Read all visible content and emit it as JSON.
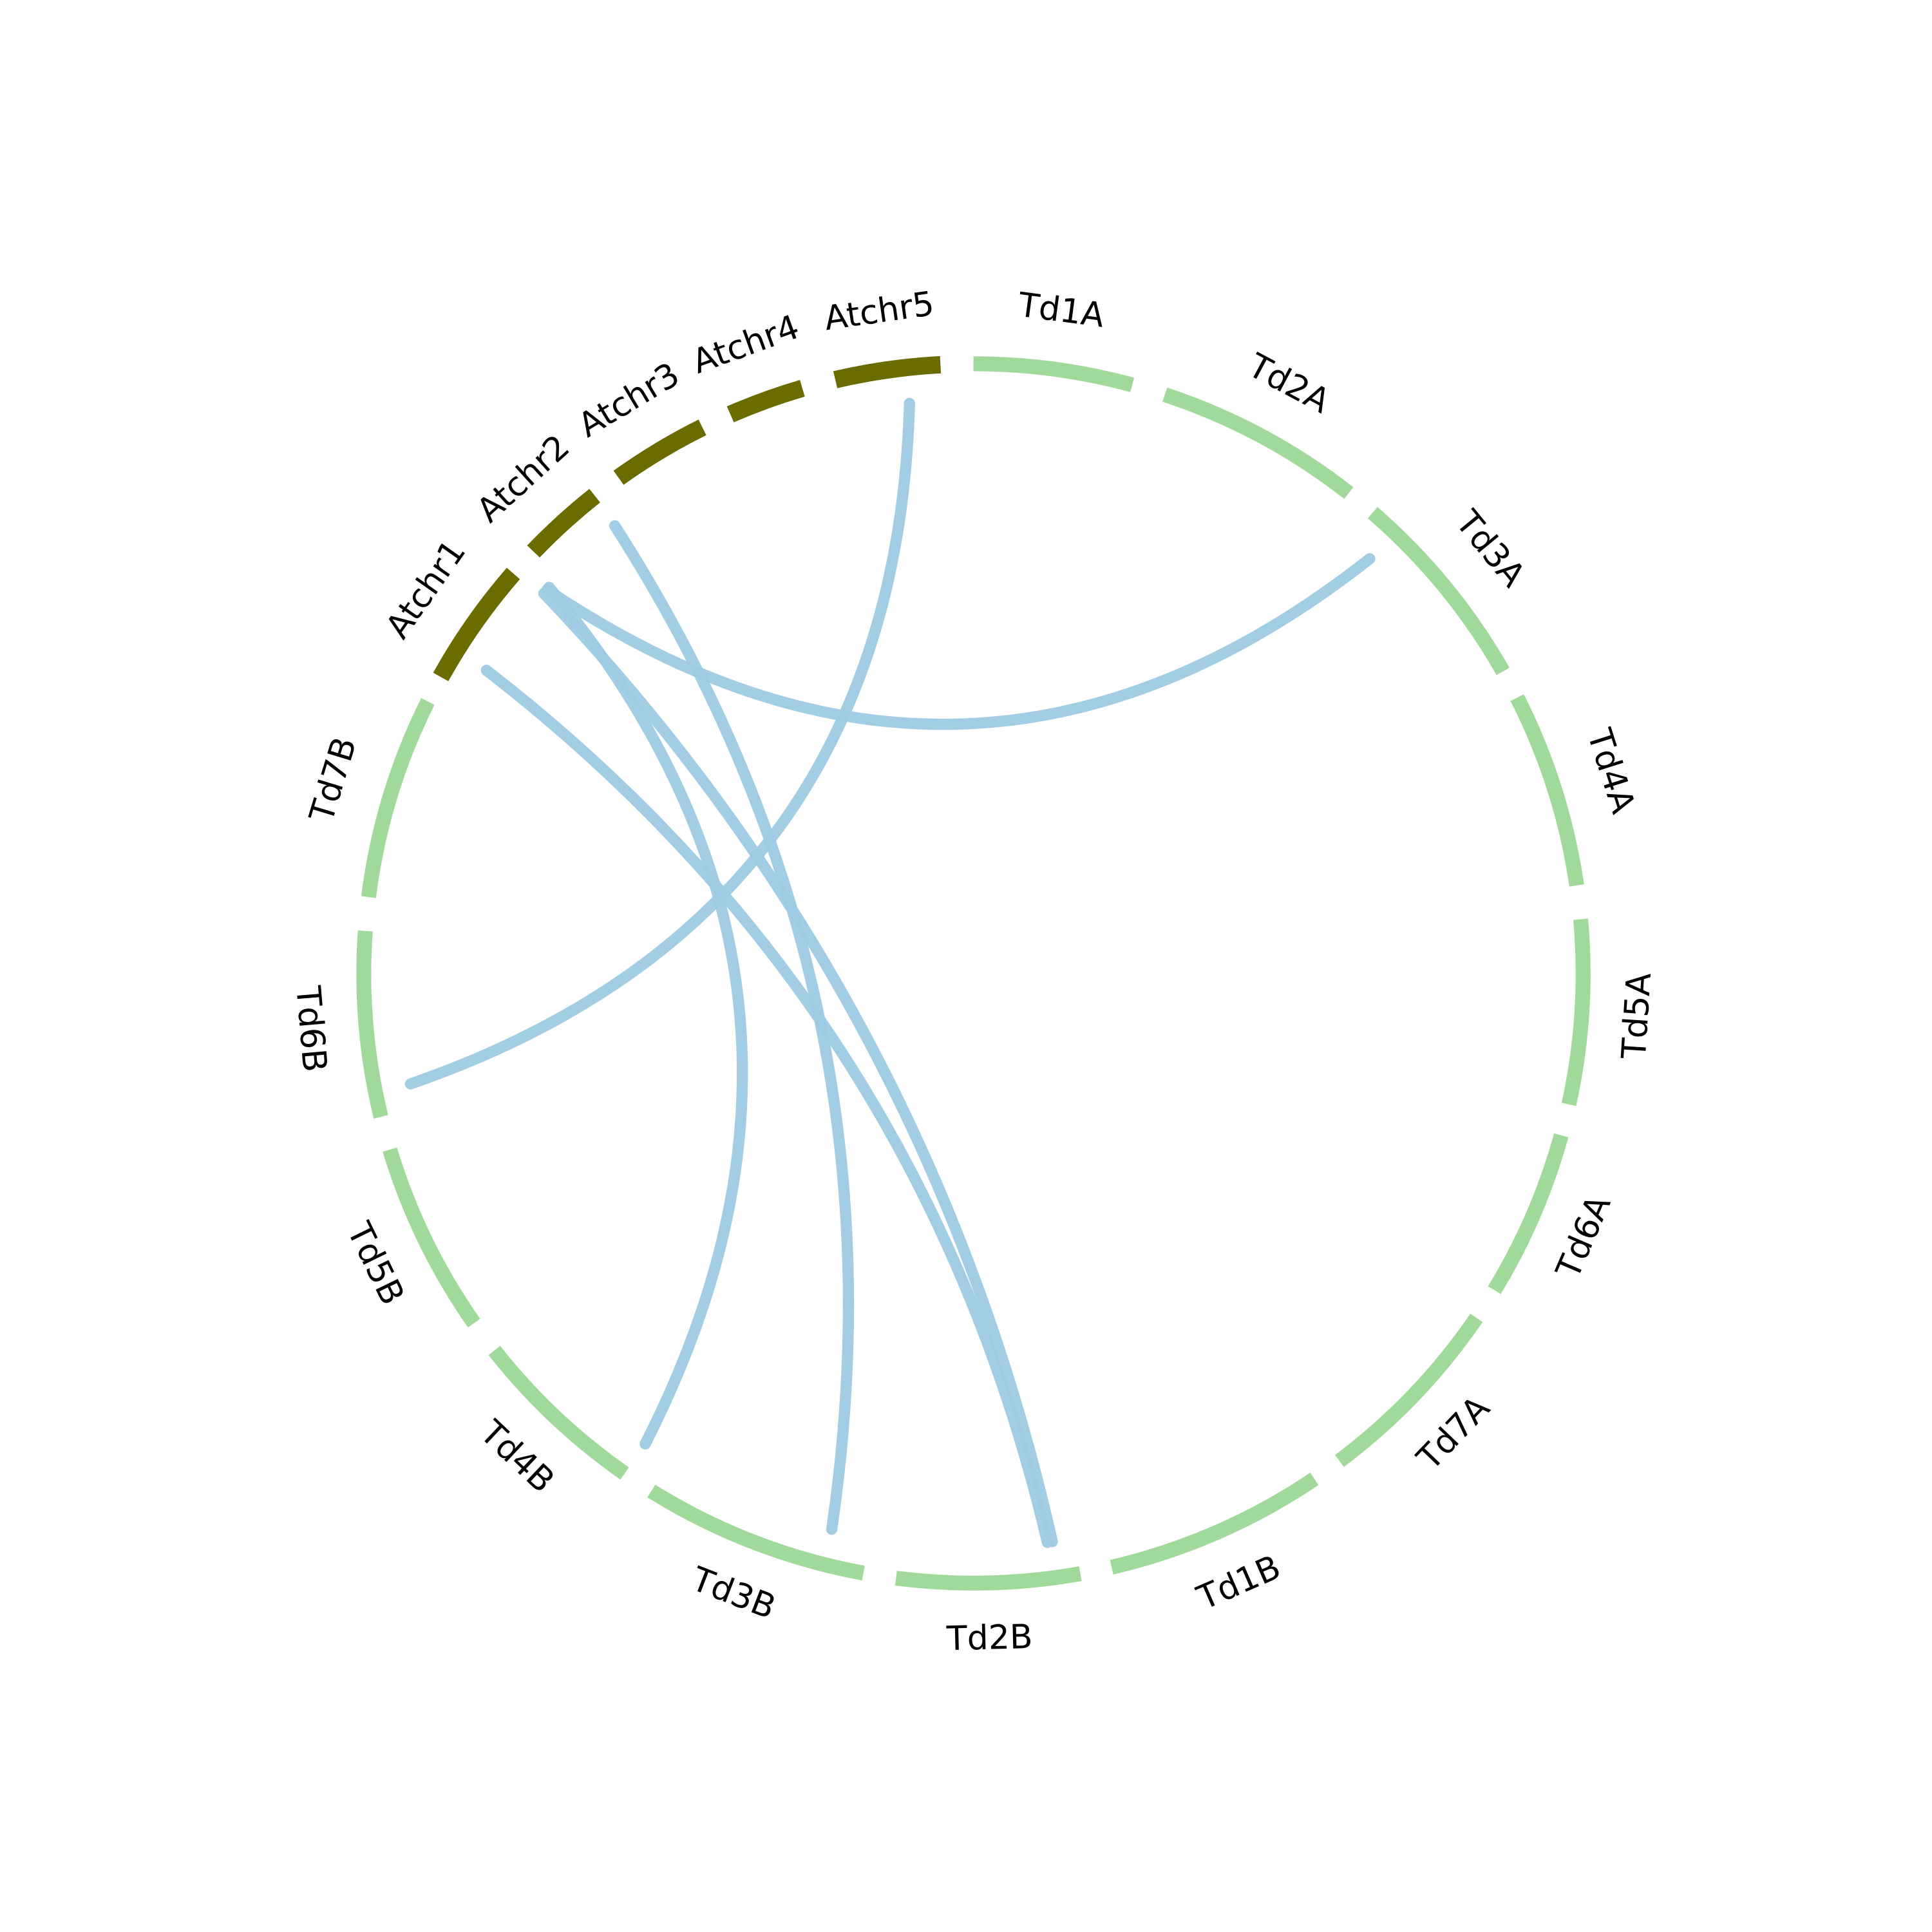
{
  "segments": [
    {
      "label": "Td1A",
      "color": "#a1d99b"
    },
    {
      "label": "Td2A",
      "color": "#a1d99b"
    },
    {
      "label": "Td3A",
      "color": "#a1d99b"
    },
    {
      "label": "Td4A",
      "color": "#a1d99b"
    },
    {
      "label": "Td5A",
      "color": "#a1d99b"
    },
    {
      "label": "Td6A",
      "color": "#a1d99b"
    },
    {
      "label": "Td7A",
      "color": "#a1d99b"
    },
    {
      "label": "Td1B",
      "color": "#a1d99b"
    },
    {
      "label": "Td2B",
      "color": "#a1d99b"
    },
    {
      "label": "Td3B",
      "color": "#a1d99b"
    },
    {
      "label": "Td4B",
      "color": "#a1d99b"
    },
    {
      "label": "Td5B",
      "color": "#a1d99b"
    },
    {
      "label": "Td6B",
      "color": "#a1d99b"
    },
    {
      "label": "Td7B",
      "color": "#a1d99b"
    },
    {
      "label": "Atchr1",
      "color": "#6b6b00"
    },
    {
      "label": "Atchr2",
      "color": "#6b6b00"
    },
    {
      "label": "Atchr3",
      "color": "#6b6b00"
    },
    {
      "label": "Atchr4",
      "color": "#6b6b00"
    },
    {
      "label": "Atchr5",
      "color": "#6b6b00"
    }
  ],
  "link_color": "#9ecae1"
}
